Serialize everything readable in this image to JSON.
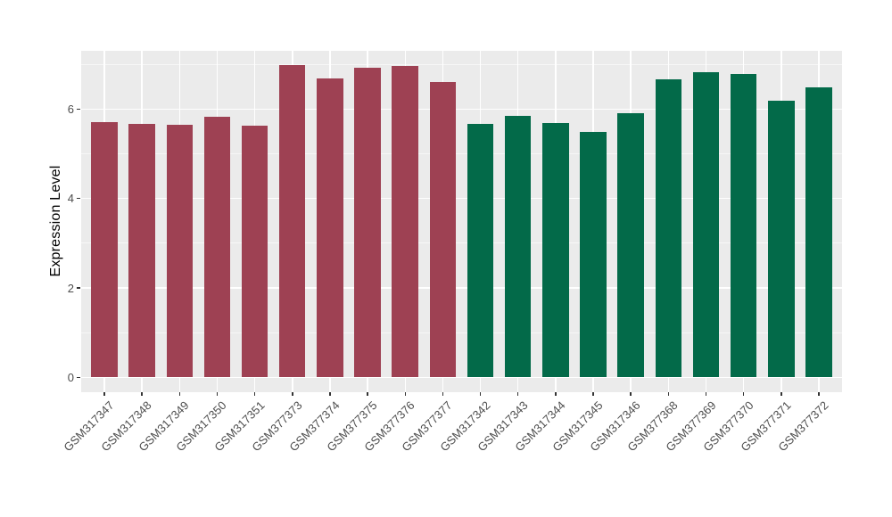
{
  "chart_data": {
    "type": "bar",
    "title": "",
    "xlabel": "",
    "ylabel": "Expression Level",
    "categories": [
      "GSM317347",
      "GSM317348",
      "GSM317349",
      "GSM317350",
      "GSM317351",
      "GSM377373",
      "GSM377374",
      "GSM377375",
      "GSM377376",
      "GSM377377",
      "GSM317342",
      "GSM317343",
      "GSM317344",
      "GSM317345",
      "GSM317346",
      "GSM377368",
      "GSM377369",
      "GSM377370",
      "GSM377371",
      "GSM377372"
    ],
    "values": [
      5.71,
      5.67,
      5.64,
      5.82,
      5.62,
      6.98,
      6.68,
      6.93,
      6.96,
      6.6,
      5.67,
      5.84,
      5.68,
      5.49,
      5.9,
      6.67,
      6.82,
      6.78,
      6.18,
      6.48
    ],
    "group_index": [
      0,
      0,
      0,
      0,
      0,
      0,
      0,
      0,
      0,
      0,
      1,
      1,
      1,
      1,
      1,
      1,
      1,
      1,
      1,
      1
    ],
    "group_colors": [
      "#9E4153",
      "#036A49"
    ],
    "y_ticks": [
      0,
      2,
      4,
      6
    ],
    "y_minor_ticks": [
      1,
      3,
      5,
      7
    ],
    "ylim": [
      -0.33,
      7.3
    ],
    "grid": true,
    "legend": "none",
    "colors": {
      "panel_bg": "#EBEBEB",
      "grid_major": "#FFFFFF",
      "grid_minor": "#F7F7F7",
      "tick_label": "#4D4D4D",
      "axis_title": "#000000",
      "page_bg": "#FFFFFF"
    }
  }
}
